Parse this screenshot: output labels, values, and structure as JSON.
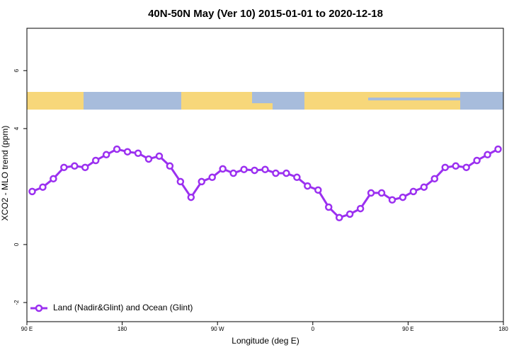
{
  "chart_data": {
    "type": "line",
    "title": "40N-50N May (Ver 10)   2015-01-01 to 2020-12-18",
    "xlabel": "Longitude (deg E)",
    "ylabel": "XCO2 - MLO trend (ppm)",
    "xlim": [
      90,
      540
    ],
    "xticks": [
      {
        "value": 90,
        "label": "90 E"
      },
      180,
      {
        "value": 270,
        "label": "90 W"
      },
      {
        "value": 360,
        "label": "0"
      },
      {
        "value": 450,
        "label": "90 E"
      },
      {
        "value": 540,
        "label": "180"
      }
    ],
    "ylim": [
      -2.66,
      7.46
    ],
    "yticks": [
      -2,
      0,
      4,
      6
    ],
    "legend": "bottom-left",
    "series": [
      {
        "name": "Land (Nadir&Glint) and Ocean (Glint)",
        "color": "#9b30f0",
        "x": [
          95,
          105,
          115,
          125,
          135,
          145,
          155,
          165,
          175,
          185,
          195,
          205,
          215,
          225,
          235,
          245,
          255,
          265,
          275,
          285,
          295,
          305,
          315,
          325,
          335,
          345,
          355,
          365,
          375,
          385,
          395,
          405,
          415,
          425,
          435,
          445,
          455,
          465,
          475,
          485,
          495,
          505,
          515,
          525,
          535
        ],
        "values": [
          1.83,
          1.98,
          2.27,
          2.66,
          2.71,
          2.66,
          2.9,
          3.1,
          3.29,
          3.2,
          3.15,
          2.95,
          3.05,
          2.71,
          2.17,
          1.63,
          2.17,
          2.32,
          2.61,
          2.46,
          2.59,
          2.56,
          2.59,
          2.46,
          2.46,
          2.32,
          2.02,
          1.88,
          1.29,
          0.93,
          1.05,
          1.24,
          1.78,
          1.78,
          1.54,
          1.63,
          1.83,
          1.98,
          2.27,
          2.66,
          2.71,
          2.66,
          2.9,
          3.1,
          3.29
        ]
      }
    ]
  }
}
